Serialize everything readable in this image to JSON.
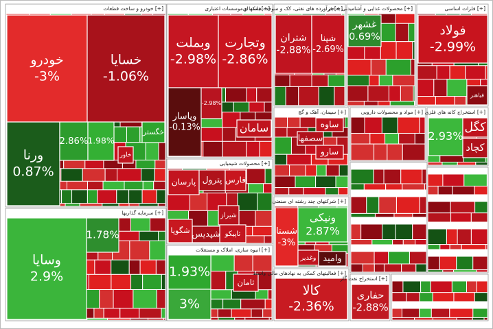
{
  "chart_data": {
    "type": "treemap",
    "sectors": [
      {
        "name": "خودرو و ساخت قطعات [+]",
        "tiles": [
          {
            "name": "خودرو",
            "value": -3,
            "value_label": "-3%",
            "color": "#e32b2b"
          },
          {
            "name": "خسایا",
            "value": -1.06,
            "value_label": "-1.06%",
            "color": "#a8121b"
          },
          {
            "name": "ورنا",
            "value": 0.87,
            "value_label": "0.87%",
            "color": "#1b5c1b"
          },
          {
            "value": 2.86,
            "value_label": "2.86%",
            "color": "#2d9c2d"
          },
          {
            "value": 1.98,
            "value_label": "1.98%",
            "color": "#34b034"
          },
          {
            "name": "خگستر",
            "color": "#2ea52e"
          },
          {
            "name": "خاور",
            "color": "#c0141e"
          }
        ]
      },
      {
        "name": "سرمایه گذاریها [+]",
        "tiles": [
          {
            "name": "وسایا",
            "value": 2.9,
            "value_label": "2.9%",
            "color": "#3bb53b"
          },
          {
            "value": 1.78,
            "value_label": "1.78%",
            "color": "#2e8e2e"
          }
        ]
      },
      {
        "name": "بانکها و موسسات اعتباری [+]",
        "tiles": [
          {
            "name": "وبملت",
            "value": -2.98,
            "value_label": "-2.98%",
            "color": "#c51622"
          },
          {
            "name": "وتجارت",
            "value": -2.86,
            "value_label": "-2.86%",
            "color": "#c9141f"
          },
          {
            "name": "وپاسار",
            "value": -0.13,
            "value_label": "-0.13%",
            "color": "#5a0d0d"
          },
          {
            "value": -2.98,
            "value_label": "-2.98%",
            "color": "#b81420"
          },
          {
            "name": "سامان",
            "color": "#c0141e"
          }
        ]
      },
      {
        "name": "محصولات شیمیایی [+]",
        "tiles": [
          {
            "name": "پارسان",
            "color": "#c3151f"
          },
          {
            "name": "پترول",
            "color": "#b0121b"
          },
          {
            "name": "فارس",
            "color": "#c8161f"
          },
          {
            "name": "شیراز",
            "color": "#b8131d"
          },
          {
            "name": "تاپیکو",
            "color": "#c3151f"
          },
          {
            "name": "شپدیس",
            "color": "#a8111a"
          },
          {
            "name": "شگویا",
            "color": "#c81820"
          }
        ]
      },
      {
        "name": "انبوه سازی، املاک و مستغلات [+]",
        "tiles": [
          {
            "value": 1.93,
            "value_label": "1.93%",
            "color": "#2ea82e"
          },
          {
            "value": 3,
            "value_label": "3%",
            "color": "#3aa83a"
          },
          {
            "name": "ثامان",
            "color": "#c0141e"
          }
        ]
      },
      {
        "name": "فرآورده های نفتی، کک و سوخت هسته ای [+]",
        "tiles": [
          {
            "name": "شتران",
            "value": -2.88,
            "value_label": "-2.88%",
            "color": "#c01420"
          },
          {
            "name": "شپنا",
            "value": -2.69,
            "value_label": "-2.69%",
            "color": "#c41420"
          }
        ]
      },
      {
        "name": "محصولات غذایی و آشامیدنی به جز [+]",
        "tiles": [
          {
            "name": "غشهر",
            "value": 0.69,
            "value_label": "0.69%",
            "color": "#2e8b2e"
          }
        ]
      },
      {
        "name": "فلزات اساسی [+]",
        "tiles": [
          {
            "name": "فولاد",
            "value": -2.99,
            "value_label": "-2.99%",
            "color": "#c8141e"
          },
          {
            "name": "فباهنر",
            "color": "#8b0a12"
          }
        ]
      },
      {
        "name": "سیمان، آهک و گچ [+]",
        "tiles": [
          {
            "name": "ساوه",
            "color": "#c0141e"
          },
          {
            "name": "سصفها",
            "color": "#b0121b"
          },
          {
            "name": "سارو",
            "color": "#c3151f"
          }
        ]
      },
      {
        "name": "مواد و محصولات دارویی [+]",
        "tiles": []
      },
      {
        "name": "استخراج کانه های فلزی [+]",
        "tiles": [
          {
            "value": 2.93,
            "value_label": "2.93%",
            "color": "#3cb83c"
          },
          {
            "name": "کگل",
            "color": "#c0141e"
          },
          {
            "name": "کچاد",
            "color": "#b0121b"
          }
        ]
      },
      {
        "name": "شرکتهای چند رشته ای صنعتی [+]",
        "tiles": [
          {
            "name": "شستا",
            "value": -3,
            "value_label": "-3%",
            "color": "#e32727"
          },
          {
            "name": "ونیکی",
            "value": 2.87,
            "value_label": "2.87%",
            "color": "#3cb83c"
          },
          {
            "name": "وغدیر",
            "color": "#c0141e"
          },
          {
            "name": "وامید",
            "color": "#5a0d0d"
          }
        ]
      },
      {
        "name": "فعالیتهای کمکی به نهادهای مالی واسط [+]",
        "tiles": [
          {
            "name": "کالا",
            "value": -2.36,
            "value_label": "-2.36%",
            "color": "#c81b22"
          }
        ]
      },
      {
        "name": "استخراج نفت گاز [+]",
        "tiles": [
          {
            "name": "حفاری",
            "value": -2.88,
            "value_label": "-2.88%",
            "color": "#c01a22"
          }
        ]
      }
    ]
  }
}
